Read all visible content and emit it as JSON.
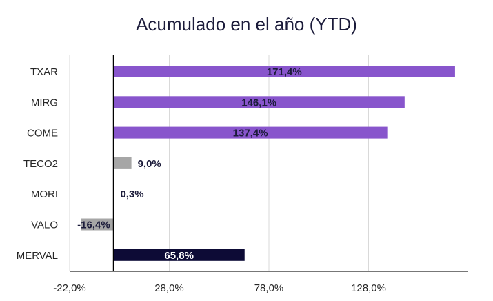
{
  "chart_data": {
    "type": "bar",
    "orientation": "horizontal",
    "title": "Acumulado en el año (YTD)",
    "categories": [
      "TXAR",
      "MIRG",
      "COME",
      "TECO2",
      "MORI",
      "VALO",
      "MERVAL"
    ],
    "values": [
      171.4,
      146.1,
      137.4,
      9.0,
      0.3,
      -16.4,
      65.8
    ],
    "value_labels": [
      "171,4%",
      "146,1%",
      "137,4%",
      "9,0%",
      "0,3%",
      "-16,4%",
      "65,8%"
    ],
    "bar_colors": [
      "#8855cc",
      "#8855cc",
      "#8855cc",
      "#a6a6a6",
      "#a6a6a6",
      "#a6a6a6",
      "#0d0b36"
    ],
    "x_ticks": [
      -22,
      28,
      78,
      128
    ],
    "x_tick_labels": [
      "-22,0%",
      "28,0%",
      "78,0%",
      "128,0%"
    ],
    "xlim": [
      -22,
      178
    ],
    "grid": true,
    "legend": "none"
  }
}
